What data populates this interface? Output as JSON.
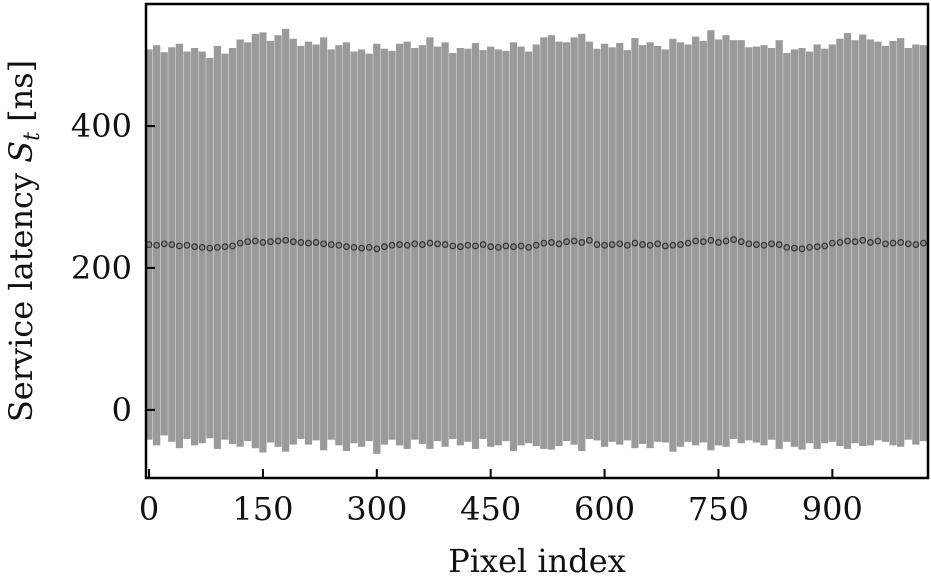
{
  "chart_data": {
    "type": "errorbar",
    "xlabel": "Pixel index",
    "ylabel": [
      "Service latency ",
      "S",
      "t",
      " [ns]"
    ],
    "xlim": [
      -4,
      1026
    ],
    "ylim": [
      -96,
      572
    ],
    "xticks": [
      0,
      150,
      300,
      450,
      600,
      750,
      900
    ],
    "yticks": [
      0,
      200,
      400
    ],
    "color": "#333333",
    "error_color": "#9a9a9a",
    "x": [
      0,
      10,
      20,
      30,
      40,
      50,
      60,
      70,
      80,
      90,
      100,
      110,
      120,
      130,
      140,
      150,
      160,
      170,
      180,
      190,
      200,
      210,
      220,
      230,
      240,
      250,
      260,
      270,
      280,
      290,
      300,
      310,
      320,
      330,
      340,
      350,
      360,
      370,
      380,
      390,
      400,
      410,
      420,
      430,
      440,
      450,
      460,
      470,
      480,
      490,
      500,
      510,
      520,
      530,
      540,
      550,
      560,
      570,
      580,
      590,
      600,
      610,
      620,
      630,
      640,
      650,
      660,
      670,
      680,
      690,
      700,
      710,
      720,
      730,
      740,
      750,
      760,
      770,
      780,
      790,
      800,
      810,
      820,
      830,
      840,
      850,
      860,
      870,
      880,
      890,
      900,
      910,
      920,
      930,
      940,
      950,
      960,
      970,
      980,
      990,
      1000,
      1010,
      1020
    ],
    "values": [
      233,
      232,
      234,
      233,
      231,
      232,
      230,
      229,
      228,
      229,
      230,
      231,
      235,
      237,
      238,
      236,
      237,
      238,
      239,
      237,
      236,
      235,
      236,
      234,
      233,
      232,
      230,
      229,
      228,
      229,
      227,
      230,
      232,
      233,
      232,
      234,
      233,
      235,
      234,
      233,
      231,
      230,
      232,
      231,
      233,
      230,
      229,
      231,
      230,
      231,
      229,
      232,
      235,
      236,
      234,
      237,
      238,
      236,
      239,
      233,
      232,
      233,
      234,
      232,
      235,
      233,
      232,
      234,
      231,
      232,
      233,
      235,
      238,
      237,
      239,
      236,
      238,
      240,
      237,
      234,
      233,
      232,
      234,
      233,
      229,
      228,
      227,
      229,
      230,
      231,
      235,
      236,
      238,
      237,
      239,
      236,
      238,
      234,
      235,
      236,
      234,
      233,
      235
    ],
    "errors": [
      275,
      282,
      270,
      278,
      285,
      273,
      280,
      276,
      268,
      284,
      272,
      279,
      287,
      281,
      292,
      296,
      283,
      290,
      298,
      286,
      277,
      284,
      279,
      291,
      275,
      282,
      288,
      276,
      280,
      273,
      289,
      279,
      274,
      283,
      287,
      276,
      281,
      290,
      278,
      285,
      272,
      280,
      277,
      286,
      274,
      282,
      279,
      275,
      288,
      281,
      276,
      283,
      290,
      292,
      285,
      281,
      287,
      294,
      280,
      276,
      284,
      278,
      283,
      275,
      289,
      281,
      286,
      279,
      277,
      291,
      285,
      280,
      288,
      283,
      296,
      286,
      290,
      281,
      284,
      277,
      279,
      282,
      276,
      288,
      274,
      280,
      283,
      276,
      285,
      278,
      280,
      287,
      293,
      284,
      290,
      286,
      281,
      279,
      285,
      288,
      276,
      282,
      279
    ]
  }
}
